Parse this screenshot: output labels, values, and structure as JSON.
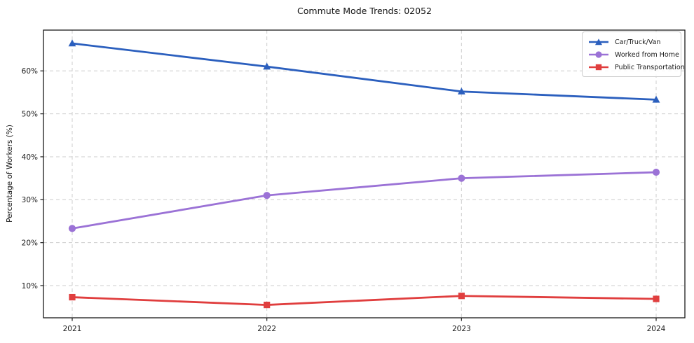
{
  "chart_data": {
    "type": "line",
    "title": "Commute Mode Trends: 02052",
    "xlabel": "",
    "ylabel": "Percentage of Workers (%)",
    "x": [
      "2021",
      "2022",
      "2023",
      "2024"
    ],
    "series": [
      {
        "name": "Car/Truck/Van",
        "values": [
          66.4,
          61.0,
          55.2,
          53.3
        ],
        "color": "#2b5fbe",
        "marker": "triangle"
      },
      {
        "name": "Worked from Home",
        "values": [
          23.3,
          31.0,
          35.0,
          36.4
        ],
        "color": "#9b72d6",
        "marker": "circle"
      },
      {
        "name": "Public Transportation",
        "values": [
          7.3,
          5.5,
          7.6,
          6.9
        ],
        "color": "#e03e3e",
        "marker": "square"
      }
    ],
    "ylim": [
      2.5,
      69.5
    ],
    "yticks": [
      10,
      20,
      30,
      40,
      50,
      60
    ],
    "ytick_suffix": "%",
    "grid": true,
    "grid_color": "#cccccc",
    "axis_border_color": "#1a1a1a",
    "legend_position": "upper right"
  }
}
